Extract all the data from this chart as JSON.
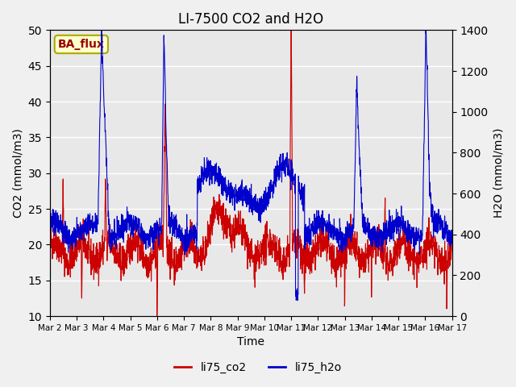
{
  "title": "LI-7500 CO2 and H2O",
  "xlabel": "Time",
  "ylabel_left": "CO2 (mmol/m3)",
  "ylabel_right": "H2O (mmol/m3)",
  "annotation": "BA_flux",
  "annotation_facecolor": "#ffffcc",
  "annotation_edgecolor": "#aaaa00",
  "annotation_textcolor": "#990000",
  "ylim_left": [
    10,
    50
  ],
  "ylim_right": [
    0,
    1400
  ],
  "yticks_left": [
    10,
    15,
    20,
    25,
    30,
    35,
    40,
    45,
    50
  ],
  "yticks_right": [
    0,
    200,
    400,
    600,
    800,
    1000,
    1200,
    1400
  ],
  "xtick_labels": [
    "Mar 2",
    "Mar 3",
    "Mar 4",
    "Mar 5",
    "Mar 6",
    "Mar 7",
    "Mar 8",
    "Mar 9",
    "Mar 10",
    "Mar 11",
    "Mar 12",
    "Mar 13",
    "Mar 14",
    "Mar 15",
    "Mar 16",
    "Mar 17"
  ],
  "co2_color": "#cc0000",
  "h2o_color": "#0000cc",
  "background_color": "#e8e8e8",
  "grid_color": "#ffffff",
  "legend_entries": [
    "li75_co2",
    "li75_h2o"
  ],
  "n_points": 2160,
  "days": 15
}
